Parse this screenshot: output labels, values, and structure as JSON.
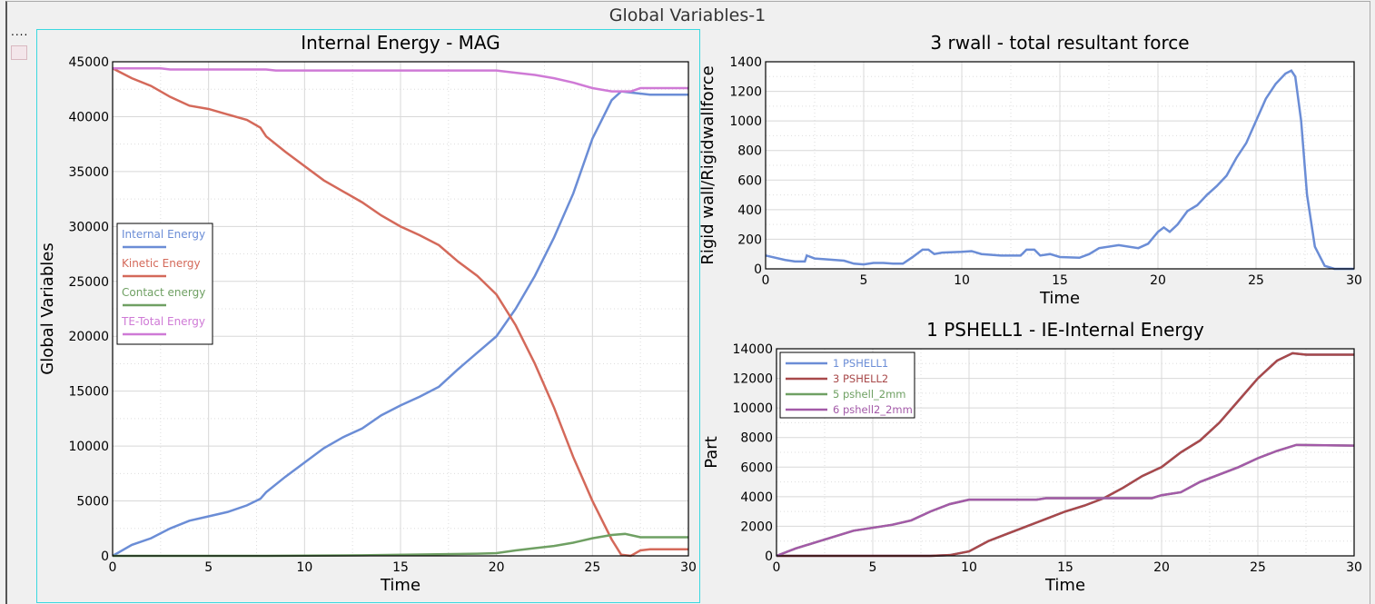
{
  "window": {
    "title": "Global Variables-1",
    "menu_dots": "...."
  },
  "colors": {
    "blue": "#6b8dd6",
    "red": "#d4695a",
    "green": "#6fa063",
    "purple": "#cf7ad6",
    "selection": "#3ad8e0"
  },
  "chart_data": [
    {
      "type": "line",
      "title": "Internal Energy - MAG",
      "xlabel": "Time",
      "ylabel": "Global Variables",
      "xlim": [
        0,
        30
      ],
      "ylim": [
        0,
        45000
      ],
      "xticks": [
        0,
        5,
        10,
        15,
        20,
        25,
        30
      ],
      "yticks": [
        0,
        5000,
        10000,
        15000,
        20000,
        25000,
        30000,
        35000,
        40000,
        45000
      ],
      "grid": true,
      "legend": "left",
      "series": [
        {
          "name": "Internal Energy",
          "color": "#6b8dd6",
          "points": [
            [
              0,
              0
            ],
            [
              1,
              1000
            ],
            [
              2,
              1600
            ],
            [
              3,
              2500
            ],
            [
              4,
              3200
            ],
            [
              5,
              3600
            ],
            [
              6,
              4000
            ],
            [
              7,
              4600
            ],
            [
              7.7,
              5200
            ],
            [
              8,
              5800
            ],
            [
              9,
              7200
            ],
            [
              10,
              8500
            ],
            [
              11,
              9800
            ],
            [
              12,
              10800
            ],
            [
              13,
              11600
            ],
            [
              14,
              12800
            ],
            [
              15,
              13700
            ],
            [
              16,
              14500
            ],
            [
              17,
              15400
            ],
            [
              18,
              17000
            ],
            [
              19,
              18500
            ],
            [
              20,
              20000
            ],
            [
              21,
              22500
            ],
            [
              22,
              25500
            ],
            [
              23,
              29000
            ],
            [
              24,
              33000
            ],
            [
              25,
              38000
            ],
            [
              26,
              41500
            ],
            [
              26.5,
              42300
            ],
            [
              27,
              42200
            ],
            [
              28,
              42000
            ],
            [
              30,
              42000
            ]
          ]
        },
        {
          "name": "Kinetic Energy",
          "color": "#d4695a",
          "points": [
            [
              0,
              44400
            ],
            [
              1,
              43500
            ],
            [
              2,
              42800
            ],
            [
              3,
              41800
            ],
            [
              4,
              41000
            ],
            [
              5,
              40700
            ],
            [
              6,
              40200
            ],
            [
              7,
              39700
            ],
            [
              7.7,
              39000
            ],
            [
              8,
              38200
            ],
            [
              9,
              36800
            ],
            [
              10,
              35500
            ],
            [
              11,
              34200
            ],
            [
              12,
              33200
            ],
            [
              13,
              32200
            ],
            [
              14,
              31000
            ],
            [
              15,
              30000
            ],
            [
              16,
              29200
            ],
            [
              17,
              28300
            ],
            [
              18,
              26800
            ],
            [
              19,
              25500
            ],
            [
              20,
              23800
            ],
            [
              21,
              21000
            ],
            [
              22,
              17500
            ],
            [
              23,
              13500
            ],
            [
              24,
              9000
            ],
            [
              25,
              5000
            ],
            [
              26,
              1500
            ],
            [
              26.5,
              100
            ],
            [
              27,
              0
            ],
            [
              27.5,
              500
            ],
            [
              28,
              600
            ],
            [
              30,
              600
            ]
          ]
        },
        {
          "name": "Contact energy",
          "color": "#6fa063",
          "points": [
            [
              0,
              0
            ],
            [
              8,
              0
            ],
            [
              13,
              50
            ],
            [
              19,
              200
            ],
            [
              20,
              250
            ],
            [
              21,
              500
            ],
            [
              22,
              700
            ],
            [
              23,
              900
            ],
            [
              24,
              1200
            ],
            [
              25,
              1600
            ],
            [
              26,
              1900
            ],
            [
              26.7,
              2000
            ],
            [
              27.5,
              1700
            ],
            [
              30,
              1700
            ]
          ]
        },
        {
          "name": "TE-Total Energy",
          "color": "#cf7ad6",
          "points": [
            [
              0,
              44400
            ],
            [
              2.5,
              44400
            ],
            [
              3,
              44300
            ],
            [
              8,
              44300
            ],
            [
              8.5,
              44200
            ],
            [
              20,
              44200
            ],
            [
              21,
              44000
            ],
            [
              22,
              43800
            ],
            [
              23,
              43500
            ],
            [
              24,
              43100
            ],
            [
              25,
              42600
            ],
            [
              26,
              42300
            ],
            [
              27,
              42300
            ],
            [
              27.5,
              42600
            ],
            [
              30,
              42600
            ]
          ]
        }
      ]
    },
    {
      "type": "line",
      "title": "3 rwall - total resultant force",
      "xlabel": "Time",
      "ylabel": "Rigid wall/Rigidwallforce",
      "xlim": [
        0,
        30
      ],
      "ylim": [
        0,
        1400
      ],
      "xticks": [
        0,
        5,
        10,
        15,
        20,
        25,
        30
      ],
      "yticks": [
        0,
        200,
        400,
        600,
        800,
        1000,
        1200,
        1400
      ],
      "grid": true,
      "legend": "none",
      "series": [
        {
          "color": "#6b8dd6",
          "points": [
            [
              0,
              90
            ],
            [
              1,
              60
            ],
            [
              1.5,
              50
            ],
            [
              2,
              50
            ],
            [
              2.1,
              90
            ],
            [
              2.5,
              70
            ],
            [
              3,
              65
            ],
            [
              4,
              55
            ],
            [
              4.5,
              35
            ],
            [
              5,
              30
            ],
            [
              5.5,
              40
            ],
            [
              6,
              40
            ],
            [
              6.5,
              35
            ],
            [
              7,
              35
            ],
            [
              7.5,
              80
            ],
            [
              8,
              130
            ],
            [
              8.3,
              130
            ],
            [
              8.6,
              100
            ],
            [
              9,
              110
            ],
            [
              10,
              115
            ],
            [
              10.5,
              120
            ],
            [
              11,
              100
            ],
            [
              12,
              90
            ],
            [
              13,
              90
            ],
            [
              13.3,
              130
            ],
            [
              13.7,
              130
            ],
            [
              14,
              90
            ],
            [
              14.5,
              100
            ],
            [
              15,
              80
            ],
            [
              16,
              75
            ],
            [
              16.5,
              100
            ],
            [
              17,
              140
            ],
            [
              18,
              160
            ],
            [
              19,
              140
            ],
            [
              19.5,
              170
            ],
            [
              20,
              250
            ],
            [
              20.3,
              280
            ],
            [
              20.6,
              250
            ],
            [
              21,
              300
            ],
            [
              21.5,
              390
            ],
            [
              22,
              430
            ],
            [
              22.5,
              500
            ],
            [
              23,
              560
            ],
            [
              23.5,
              630
            ],
            [
              24,
              750
            ],
            [
              24.5,
              850
            ],
            [
              25,
              1000
            ],
            [
              25.5,
              1150
            ],
            [
              26,
              1250
            ],
            [
              26.5,
              1320
            ],
            [
              26.8,
              1340
            ],
            [
              27,
              1300
            ],
            [
              27.3,
              1000
            ],
            [
              27.6,
              500
            ],
            [
              28,
              150
            ],
            [
              28.5,
              20
            ],
            [
              29,
              0
            ],
            [
              30,
              0
            ]
          ]
        }
      ]
    },
    {
      "type": "line",
      "title": "1 PSHELL1 - IE-Internal Energy",
      "xlabel": "Time",
      "ylabel": "Part",
      "xlim": [
        0,
        30
      ],
      "ylim": [
        0,
        14000
      ],
      "xticks": [
        0,
        5,
        10,
        15,
        20,
        25,
        30
      ],
      "yticks": [
        0,
        2000,
        4000,
        6000,
        8000,
        10000,
        12000,
        14000
      ],
      "grid": true,
      "legend": "top-left",
      "series": [
        {
          "name": "1 PSHELL1",
          "color": "#6b8dd6",
          "points": [
            [
              0,
              0
            ],
            [
              8,
              0
            ],
            [
              9,
              50
            ],
            [
              10,
              300
            ],
            [
              11,
              1000
            ],
            [
              12,
              1500
            ],
            [
              13,
              2000
            ],
            [
              14,
              2500
            ],
            [
              15,
              3000
            ],
            [
              16,
              3400
            ],
            [
              17,
              3900
            ],
            [
              18,
              4600
            ],
            [
              19,
              5400
            ],
            [
              20,
              6000
            ],
            [
              21,
              7000
            ],
            [
              22,
              7800
            ],
            [
              23,
              9000
            ],
            [
              24,
              10500
            ],
            [
              25,
              12000
            ],
            [
              26,
              13200
            ],
            [
              26.8,
              13700
            ],
            [
              27.5,
              13600
            ],
            [
              30,
              13600
            ]
          ]
        },
        {
          "name": "3 PSHELL2",
          "color": "#a8494a",
          "points": [
            [
              0,
              0
            ],
            [
              8,
              0
            ],
            [
              9,
              50
            ],
            [
              10,
              300
            ],
            [
              11,
              1000
            ],
            [
              12,
              1500
            ],
            [
              13,
              2000
            ],
            [
              14,
              2500
            ],
            [
              15,
              3000
            ],
            [
              16,
              3400
            ],
            [
              17,
              3900
            ],
            [
              18,
              4600
            ],
            [
              19,
              5400
            ],
            [
              20,
              6000
            ],
            [
              21,
              7000
            ],
            [
              22,
              7800
            ],
            [
              23,
              9000
            ],
            [
              24,
              10500
            ],
            [
              25,
              12000
            ],
            [
              26,
              13200
            ],
            [
              26.8,
              13700
            ],
            [
              27.5,
              13600
            ],
            [
              30,
              13600
            ]
          ]
        },
        {
          "name": "5 pshell_2mm",
          "color": "#6fa063",
          "points": [
            [
              0,
              0
            ],
            [
              1,
              500
            ],
            [
              2,
              900
            ],
            [
              3,
              1300
            ],
            [
              4,
              1700
            ],
            [
              5,
              1900
            ],
            [
              6,
              2100
            ],
            [
              7,
              2400
            ],
            [
              8,
              3000
            ],
            [
              9,
              3500
            ],
            [
              10,
              3800
            ],
            [
              13.5,
              3800
            ],
            [
              14,
              3900
            ],
            [
              19.5,
              3900
            ],
            [
              20,
              4100
            ],
            [
              21,
              4300
            ],
            [
              22,
              5000
            ],
            [
              23,
              5500
            ],
            [
              24,
              6000
            ],
            [
              25,
              6600
            ],
            [
              26,
              7100
            ],
            [
              27,
              7500
            ],
            [
              30,
              7450
            ]
          ]
        },
        {
          "name": "6 pshell2_2mm",
          "color": "#a35aa8",
          "points": [
            [
              0,
              0
            ],
            [
              1,
              500
            ],
            [
              2,
              900
            ],
            [
              3,
              1300
            ],
            [
              4,
              1700
            ],
            [
              5,
              1900
            ],
            [
              6,
              2100
            ],
            [
              7,
              2400
            ],
            [
              8,
              3000
            ],
            [
              9,
              3500
            ],
            [
              10,
              3800
            ],
            [
              13.5,
              3800
            ],
            [
              14,
              3900
            ],
            [
              19.5,
              3900
            ],
            [
              20,
              4100
            ],
            [
              21,
              4300
            ],
            [
              22,
              5000
            ],
            [
              23,
              5500
            ],
            [
              24,
              6000
            ],
            [
              25,
              6600
            ],
            [
              26,
              7100
            ],
            [
              27,
              7500
            ],
            [
              30,
              7450
            ]
          ]
        }
      ]
    }
  ]
}
